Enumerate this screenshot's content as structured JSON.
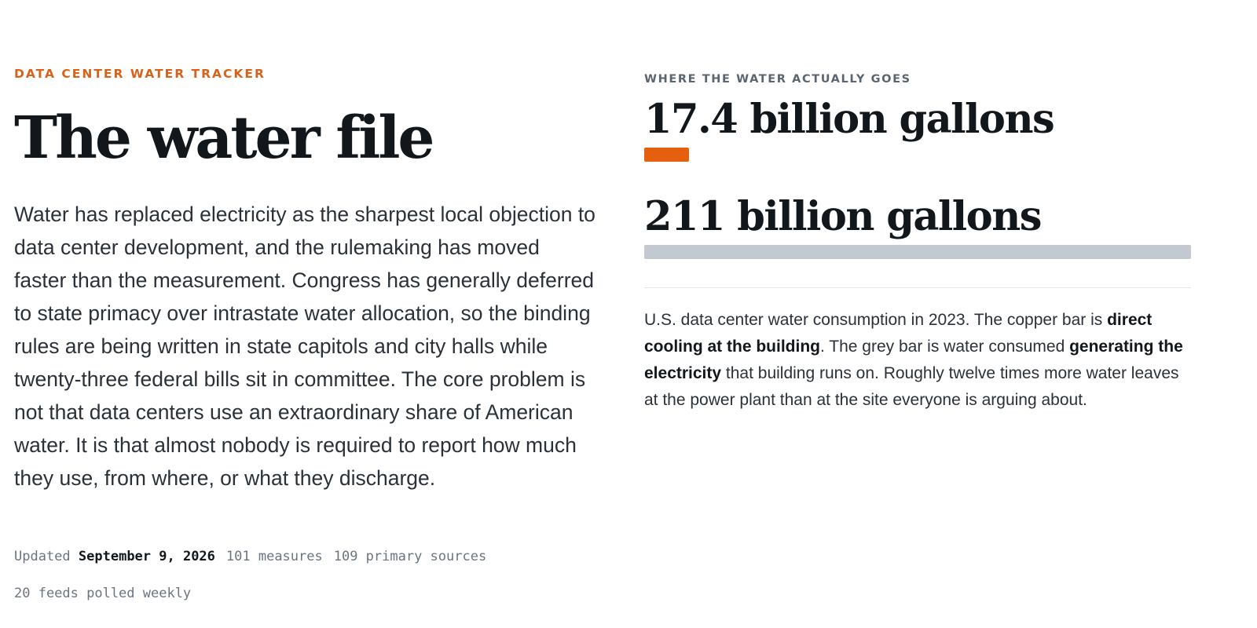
{
  "header": {
    "kicker": "DATA CENTER WATER TRACKER",
    "title": "The water file"
  },
  "lede": "Water has replaced electricity as the sharpest local objection to data center development, and the rulemaking has moved faster than the measurement. Congress has generally deferred to state primacy over intrastate water allocation, so the binding rules are being written in state capitols and city halls while twenty-three federal bills sit in committee. The core problem is not that data centers use an extraordinary share of American water. It is that almost nobody is required to report how much they use, from where, or what they discharge.",
  "meta": {
    "updated_label": "Updated",
    "updated_date": "September 9, 2026",
    "measures": "101 measures",
    "sources": "109 primary sources",
    "feeds": "20 feeds polled weekly"
  },
  "figure": {
    "label": "WHERE THE WATER ACTUALLY GOES",
    "direct_value_text": "17.4 billion gallons",
    "indirect_value_text": "211 billion gallons",
    "caption": {
      "part1": "U.S. data center water consumption in 2023. The copper bar is ",
      "bold1": "direct cooling at the building",
      "part2": ". The grey bar is water consumed ",
      "bold2": "generating the electricity",
      "part3": " that building runs on. Roughly twelve times more water leaves at the power plant than at the site everyone is arguing about."
    }
  },
  "chart_data": {
    "type": "bar",
    "categories": [
      "direct cooling at the building",
      "generating the electricity"
    ],
    "values": [
      17.4,
      211
    ],
    "unit": "billion gallons",
    "colors": [
      "#e4600e",
      "#c3c9d0"
    ],
    "xlim": [
      0,
      211
    ]
  }
}
